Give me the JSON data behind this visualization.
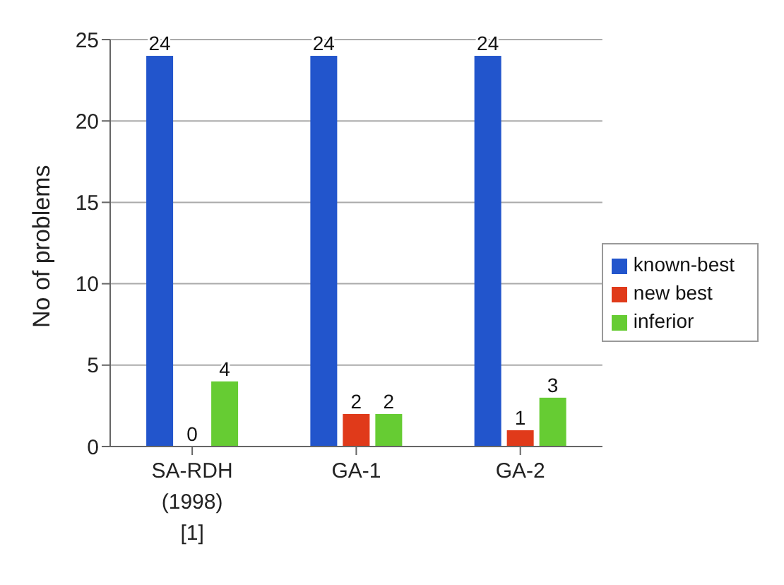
{
  "chart_data": {
    "type": "bar",
    "ylabel": "No of problems",
    "categories": [
      "SA-RDH (1998) [1]",
      "GA-1",
      "GA-2"
    ],
    "series": [
      {
        "name": "known-best",
        "color": "#2255cc",
        "values": [
          24,
          24,
          24
        ]
      },
      {
        "name": "new best",
        "color": "#e03a1a",
        "values": [
          0,
          2,
          1
        ]
      },
      {
        "name": "inferior",
        "color": "#66cc33",
        "values": [
          4,
          2,
          3
        ]
      }
    ],
    "ylim": [
      0,
      25
    ],
    "yticks": [
      0,
      5,
      10,
      15,
      20,
      25
    ],
    "grid": "y",
    "legend": "right",
    "data_labels": true
  }
}
